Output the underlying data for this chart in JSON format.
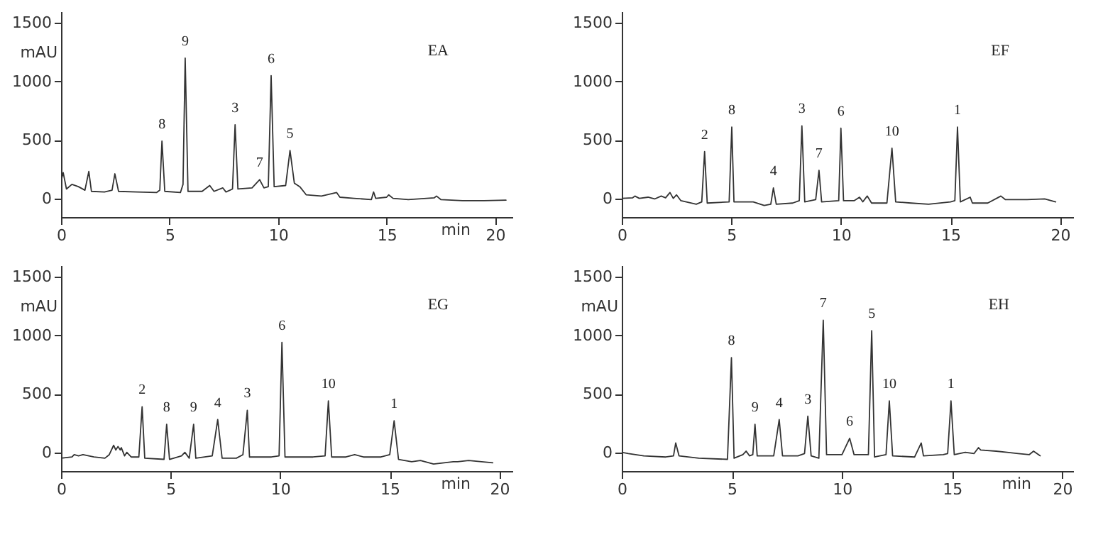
{
  "chart_data": [
    {
      "type": "line",
      "ylabel": "mAU",
      "xlabel": "min",
      "xlim": [
        0,
        20.8
      ],
      "ylim": [
        -160,
        1600
      ],
      "xticks": [
        0,
        5,
        10,
        15,
        20
      ],
      "yticks": [
        0,
        500,
        1000,
        1500
      ],
      "grid": false,
      "marker": "none",
      "x": [
        0,
        0.1,
        0.25,
        0.5,
        0.8,
        1.1,
        1.28,
        1.4,
        2.0,
        2.35,
        2.48,
        2.65,
        3.5,
        4.4,
        4.55,
        4.65,
        4.78,
        5.5,
        5.62,
        5.72,
        5.85,
        6.5,
        6.85,
        7.05,
        7.45,
        7.6,
        7.9,
        8.02,
        8.15,
        8.8,
        9.15,
        9.35,
        9.55,
        9.68,
        9.82,
        10.35,
        10.55,
        10.75,
        11.0,
        11.3,
        12.0,
        12.7,
        12.85,
        13.5,
        14.3,
        14.4,
        14.5,
        15.0,
        15.1,
        15.3,
        16.0,
        17.2,
        17.3,
        17.5,
        18.5,
        19.5,
        20.5
      ],
      "series": [
        {
          "color": "#333333",
          "values": [
            150,
            220,
            80,
            120,
            100,
            70,
            230,
            60,
            55,
            70,
            210,
            60,
            55,
            50,
            70,
            490,
            60,
            50,
            120,
            1200,
            60,
            60,
            110,
            60,
            90,
            55,
            80,
            630,
            80,
            90,
            160,
            90,
            100,
            1050,
            100,
            110,
            410,
            130,
            100,
            30,
            20,
            50,
            10,
            0,
            -10,
            55,
            0,
            10,
            30,
            0,
            -10,
            5,
            20,
            -10,
            -20,
            -20,
            -15
          ]
        }
      ],
      "annotations": [
        "EA",
        {
          "text": "8",
          "x": 4.65,
          "y": 490
        },
        {
          "text": "9",
          "x": 5.72,
          "y": 1200
        },
        {
          "text": "3",
          "x": 8.02,
          "y": 630
        },
        {
          "text": "7",
          "x": 9.15,
          "y": 160
        },
        {
          "text": "6",
          "x": 9.68,
          "y": 1050
        },
        {
          "text": "5",
          "x": 10.55,
          "y": 410
        }
      ]
    },
    {
      "type": "line",
      "xlim": [
        0,
        20.6
      ],
      "ylim": [
        -160,
        1600
      ],
      "xticks": [
        0,
        5,
        10,
        15,
        20
      ],
      "yticks": [
        0,
        500,
        1000,
        1500
      ],
      "grid": false,
      "marker": "none",
      "x": [
        0,
        0.5,
        0.6,
        0.8,
        1.2,
        1.5,
        1.8,
        2.0,
        2.2,
        2.35,
        2.5,
        2.7,
        3.4,
        3.65,
        3.78,
        3.9,
        4.9,
        5.02,
        5.12,
        6.0,
        6.5,
        6.8,
        6.92,
        7.05,
        7.8,
        8.1,
        8.22,
        8.35,
        8.85,
        9.0,
        9.12,
        9.9,
        10.0,
        10.12,
        10.6,
        10.85,
        11.0,
        11.2,
        11.4,
        12.1,
        12.33,
        12.5,
        13.2,
        14.0,
        15.0,
        15.2,
        15.32,
        15.45,
        15.9,
        16.0,
        16.7,
        17.3,
        17.5,
        18.5,
        19.3,
        19.8
      ],
      "series": [
        {
          "color": "#333333",
          "values": [
            0,
            5,
            20,
            0,
            10,
            -5,
            20,
            5,
            50,
            0,
            30,
            -20,
            -50,
            -30,
            400,
            -40,
            -30,
            610,
            -30,
            -30,
            -60,
            -50,
            90,
            -50,
            -40,
            -20,
            620,
            -30,
            -10,
            240,
            -30,
            -20,
            600,
            -20,
            -20,
            10,
            -30,
            20,
            -40,
            -40,
            430,
            -30,
            -40,
            -50,
            -30,
            -20,
            610,
            -30,
            10,
            -40,
            -40,
            20,
            -10,
            -10,
            -5,
            -30
          ]
        }
      ],
      "annotations": [
        "EF",
        {
          "text": "2",
          "x": 3.78,
          "y": 400
        },
        {
          "text": "8",
          "x": 5.02,
          "y": 610
        },
        {
          "text": "4",
          "x": 6.92,
          "y": 90
        },
        {
          "text": "3",
          "x": 8.22,
          "y": 620
        },
        {
          "text": "7",
          "x": 9.0,
          "y": 240
        },
        {
          "text": "6",
          "x": 10.0,
          "y": 600
        },
        {
          "text": "10",
          "x": 12.33,
          "y": 430
        },
        {
          "text": "1",
          "x": 15.32,
          "y": 610
        }
      ]
    },
    {
      "type": "line",
      "ylabel": "mAU",
      "xlabel": "min",
      "xlim": [
        0,
        20.6
      ],
      "ylim": [
        -160,
        1600
      ],
      "xticks": [
        0,
        5,
        10,
        15,
        20
      ],
      "yticks": [
        0,
        500,
        1000,
        1500
      ],
      "grid": false,
      "marker": "none",
      "x": [
        0,
        0.5,
        0.6,
        0.8,
        1.0,
        1.5,
        2.0,
        2.2,
        2.4,
        2.5,
        2.6,
        2.7,
        2.75,
        2.9,
        3.0,
        3.2,
        3.55,
        3.7,
        3.82,
        4.7,
        4.82,
        4.95,
        5.5,
        5.65,
        5.85,
        6.05,
        6.15,
        6.9,
        7.15,
        7.35,
        8.0,
        8.3,
        8.5,
        8.6,
        9.6,
        9.95,
        10.08,
        10.22,
        11.5,
        12.05,
        12.2,
        12.35,
        13.0,
        13.4,
        13.8,
        14.6,
        15.0,
        15.2,
        15.4,
        16.0,
        16.4,
        17.0,
        17.9,
        18.1,
        18.6,
        19.7
      ],
      "series": [
        {
          "color": "#333333",
          "values": [
            -50,
            -40,
            -20,
            -30,
            -20,
            -40,
            -50,
            -20,
            60,
            20,
            50,
            20,
            40,
            -30,
            0,
            -40,
            -40,
            390,
            -50,
            -60,
            240,
            -60,
            -30,
            0,
            -50,
            240,
            -50,
            -30,
            280,
            -50,
            -50,
            -20,
            360,
            -40,
            -40,
            -30,
            940,
            -40,
            -40,
            -30,
            440,
            -40,
            -40,
            -20,
            -40,
            -40,
            -20,
            270,
            -60,
            -80,
            -70,
            -100,
            -80,
            -80,
            -70,
            -90
          ]
        }
      ],
      "annotations": [
        "EG",
        {
          "text": "2",
          "x": 3.7,
          "y": 390
        },
        {
          "text": "8",
          "x": 4.82,
          "y": 240
        },
        {
          "text": "9",
          "x": 6.05,
          "y": 240
        },
        {
          "text": "4",
          "x": 7.15,
          "y": 280
        },
        {
          "text": "3",
          "x": 8.5,
          "y": 360
        },
        {
          "text": "6",
          "x": 10.08,
          "y": 940
        },
        {
          "text": "10",
          "x": 12.2,
          "y": 440
        },
        {
          "text": "1",
          "x": 15.2,
          "y": 270
        }
      ]
    },
    {
      "type": "line",
      "ylabel": "mAU",
      "xlabel": "min",
      "xlim": [
        0,
        20.5
      ],
      "ylim": [
        -160,
        1600
      ],
      "xticks": [
        0,
        5,
        10,
        15,
        20
      ],
      "yticks": [
        0,
        500,
        1000,
        1500
      ],
      "grid": false,
      "marker": "none",
      "x": [
        0,
        0.3,
        1.0,
        2.0,
        2.35,
        2.45,
        2.6,
        3.5,
        4.8,
        4.98,
        5.1,
        5.5,
        5.65,
        5.8,
        5.95,
        6.05,
        6.15,
        6.9,
        7.15,
        7.3,
        8.0,
        8.3,
        8.45,
        8.6,
        8.95,
        9.15,
        9.3,
        10.0,
        10.35,
        10.55,
        11.2,
        11.35,
        11.48,
        12.0,
        12.15,
        12.3,
        13.3,
        13.6,
        13.7,
        14.6,
        14.8,
        14.95,
        15.1,
        15.6,
        16.0,
        16.2,
        16.3,
        17.0,
        17.5,
        18.0,
        18.5,
        18.7,
        19.0
      ],
      "series": [
        {
          "color": "#333333",
          "values": [
            0,
            -10,
            -30,
            -40,
            -30,
            80,
            -30,
            -50,
            -60,
            810,
            -50,
            -20,
            10,
            -30,
            -20,
            240,
            -30,
            -30,
            280,
            -30,
            -30,
            -10,
            310,
            -30,
            -50,
            1130,
            -20,
            -20,
            120,
            -20,
            -20,
            1040,
            -40,
            -20,
            440,
            -30,
            -40,
            80,
            -30,
            -20,
            -10,
            440,
            -20,
            0,
            -10,
            40,
            20,
            10,
            0,
            -10,
            -20,
            10,
            -30
          ]
        }
      ],
      "annotations": [
        "EH",
        {
          "text": "8",
          "x": 4.98,
          "y": 810
        },
        {
          "text": "9",
          "x": 6.05,
          "y": 240
        },
        {
          "text": "4",
          "x": 7.15,
          "y": 280
        },
        {
          "text": "3",
          "x": 8.45,
          "y": 310
        },
        {
          "text": "7",
          "x": 9.15,
          "y": 1130
        },
        {
          "text": "6",
          "x": 10.35,
          "y": 120
        },
        {
          "text": "5",
          "x": 11.35,
          "y": 1040
        },
        {
          "text": "10",
          "x": 12.15,
          "y": 440
        },
        {
          "text": "1",
          "x": 14.95,
          "y": 440
        }
      ]
    }
  ]
}
